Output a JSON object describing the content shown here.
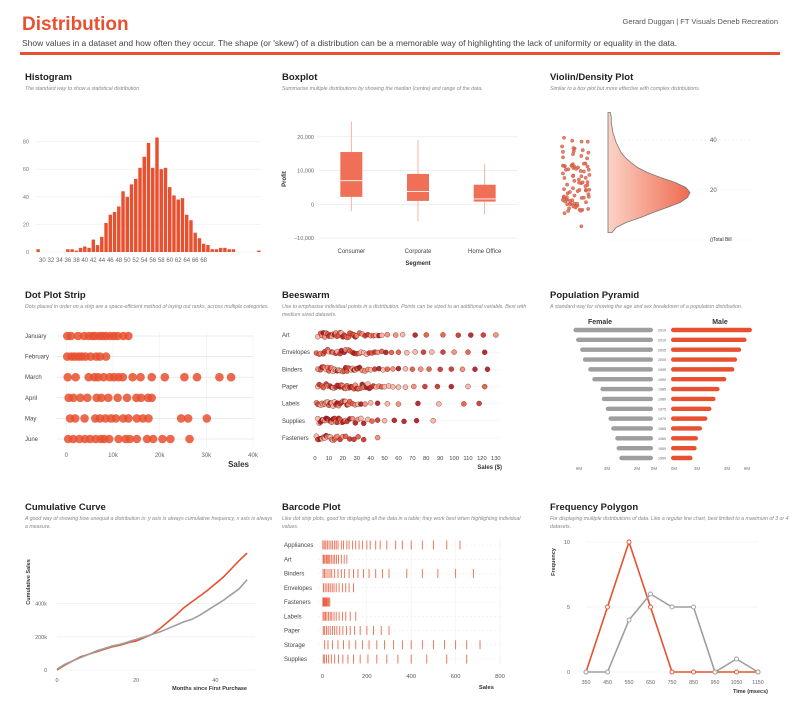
{
  "header": {
    "title": "Distribution",
    "subtitle": "Show values in a dataset and how often they occur. The shape (or 'skew') of a distribution can be a memorable way of highlighting the lack of uniformity or equality in the data.",
    "credit": "Gerard Duggan  |  FT Visuals Deneb Recreation"
  },
  "colors": {
    "accent": "#e8502f",
    "gray": "#9e9e9e",
    "light_orange": "#f7a38d",
    "dark_red": "#a8191f"
  },
  "panels": {
    "histogram": {
      "title": "Histogram",
      "subtitle": "The standard way to show a statistical distribution"
    },
    "boxplot": {
      "title": "Boxplot",
      "subtitle": "Summarise multiple distributions by showing the median (centre) and range of the data."
    },
    "violin": {
      "title": "Violin/Density Plot",
      "subtitle": "Similar to a box plot but more effective with complex distributions."
    },
    "dotstrip": {
      "title": "Dot Plot Strip",
      "subtitle": "Dots placed in order on a strip are a space-efficient method of laying out ranks, across multiple categories."
    },
    "beeswarm": {
      "title": "Beeswarm",
      "subtitle": "Use to emphasise individual points in a distribution. Points can be sized to an additional variable. Best with medium sized datasets."
    },
    "pyramid": {
      "title": "Population Pyramid",
      "subtitle": "A standard way for showing the age and sex breakdown of a population distribution."
    },
    "cumulative": {
      "title": "Cumulative Curve",
      "subtitle": "A good way of showing how unequal a distribution is: y axis is always cumulative frequency, x axis is always a measure."
    },
    "barcode": {
      "title": "Barcode Plot",
      "subtitle": "Like dot strip plots, good for displaying all the data in a table; they work best when highlighting individual values."
    },
    "freqpoly": {
      "title": "Frequency Polygon",
      "subtitle": "For displaying multiple distributions of data. Like a regular line chart, best limited to a maximum of 3 or 4 datasets."
    }
  },
  "chart_data": [
    {
      "id": "histogram",
      "type": "bar",
      "x_ticks": [
        "30",
        "32",
        "34",
        "36",
        "38",
        "40",
        "42",
        "44",
        "46",
        "48",
        "50",
        "52",
        "54",
        "56",
        "58",
        "60",
        "62",
        "64",
        "66",
        "68"
      ],
      "bins_start": 29,
      "bin_width": 1,
      "values": [
        2,
        0,
        0,
        0,
        0,
        0,
        0,
        2,
        2,
        1,
        3,
        4,
        3,
        9,
        5,
        11,
        21,
        27,
        29,
        33,
        44,
        40,
        49,
        53,
        61,
        69,
        79,
        61,
        83,
        60,
        61,
        47,
        41,
        38,
        39,
        27,
        23,
        14,
        10,
        6,
        5,
        2,
        2,
        3,
        3,
        2,
        2,
        0,
        0,
        0,
        0,
        0,
        1
      ],
      "ylim": [
        0,
        100
      ],
      "y_ticks": [
        "0",
        "20",
        "40",
        "60",
        "80"
      ]
    },
    {
      "id": "boxplot",
      "type": "box",
      "categories": [
        "Consumer",
        "Corporate",
        "Home Office"
      ],
      "boxes": [
        {
          "min": -2000,
          "q1": 2200,
          "median": 7000,
          "q3": 15500,
          "max": 24500
        },
        {
          "min": -5000,
          "q1": 1000,
          "median": 3800,
          "q3": 9000,
          "max": 19000
        },
        {
          "min": -3000,
          "q1": 800,
          "median": 1600,
          "q3": 5800,
          "max": 12000
        }
      ],
      "ylim": [
        -10000,
        25000
      ],
      "y_ticks": [
        "20,000",
        "10,000",
        "0",
        "−10,000"
      ],
      "y_tick_values": [
        20000,
        10000,
        0,
        -10000
      ],
      "xlabel": "Segment",
      "ylabel": "Profit"
    },
    {
      "id": "violin",
      "type": "area",
      "x_ticks": [
        "40",
        "20",
        "0"
      ],
      "x_tick_values": [
        40,
        20,
        0
      ],
      "density": [
        [
          3,
          0.05
        ],
        [
          5,
          0.1
        ],
        [
          7,
          0.22
        ],
        [
          9,
          0.4
        ],
        [
          11,
          0.55
        ],
        [
          13,
          0.72
        ],
        [
          15,
          0.88
        ],
        [
          17,
          0.97
        ],
        [
          19,
          1.0
        ],
        [
          21,
          0.95
        ],
        [
          23,
          0.82
        ],
        [
          25,
          0.64
        ],
        [
          27,
          0.48
        ],
        [
          29,
          0.36
        ],
        [
          31,
          0.28
        ],
        [
          33,
          0.21
        ],
        [
          35,
          0.16
        ],
        [
          37,
          0.13
        ],
        [
          39,
          0.1
        ],
        [
          41,
          0.08
        ],
        [
          43,
          0.06
        ],
        [
          45,
          0.05
        ],
        [
          47,
          0.04
        ],
        [
          49,
          0.04
        ],
        [
          51,
          0.03
        ]
      ],
      "ylim": [
        0,
        52
      ],
      "label": "Total Bill"
    },
    {
      "id": "dotstrip",
      "type": "scatter",
      "categories": [
        "January",
        "February",
        "March",
        "April",
        "May",
        "June"
      ],
      "points": [
        [
          200,
          1000,
          2500,
          3800,
          4800,
          5600,
          6200,
          7100,
          7800,
          8500,
          9400,
          10200,
          11000,
          12200,
          13300
        ],
        [
          200,
          1100,
          1800,
          2600,
          3300,
          4100,
          5200,
          6400,
          7200,
          8500
        ],
        [
          300,
          2000,
          4800,
          6000,
          6800,
          8000,
          9300,
          10200,
          11200,
          12100,
          14200,
          15900,
          18300,
          21100,
          25300,
          28000,
          32800,
          35300
        ],
        [
          500,
          1500,
          3000,
          4500,
          6500,
          7500,
          9000,
          11000,
          13000,
          15000,
          16000,
          17500,
          18300
        ],
        [
          800,
          1900,
          3900,
          6200,
          7200,
          8400,
          9600,
          10600,
          12200,
          13300,
          15100,
          16400,
          17600,
          24600,
          26100,
          30100
        ],
        [
          400,
          1500,
          2800,
          4000,
          5100,
          6300,
          7400,
          8100,
          9200,
          11200,
          12700,
          13600,
          15100,
          17300,
          18600,
          20600,
          22300,
          26400
        ]
      ],
      "x_ticks": [
        "0",
        "10k",
        "20k",
        "30k",
        "40k"
      ],
      "x_tick_values": [
        0,
        10000,
        20000,
        30000,
        40000
      ],
      "xlim": [
        -2000,
        40000
      ],
      "xlabel": "Sales"
    },
    {
      "id": "beeswarm",
      "type": "scatter",
      "categories": [
        "Art",
        "Envelopes",
        "Binders",
        "Paper",
        "Labels",
        "Supplies",
        "Fasteners"
      ],
      "points": [
        [
          2,
          4,
          5,
          6,
          7,
          8,
          8,
          9,
          10,
          11,
          12,
          12,
          13,
          14,
          15,
          15,
          16,
          17,
          18,
          19,
          20,
          21,
          22,
          23,
          24,
          25,
          26,
          27,
          28,
          29,
          30,
          32,
          34,
          36,
          38,
          40,
          42,
          44,
          46,
          48,
          52,
          58,
          63,
          72,
          80,
          92,
          103,
          112,
          121,
          130
        ],
        [
          1,
          3,
          4,
          6,
          7,
          9,
          10,
          12,
          13,
          15,
          16,
          18,
          19,
          21,
          22,
          24,
          25,
          27,
          28,
          30,
          32,
          33,
          35,
          37,
          39,
          41,
          43,
          45,
          48,
          51,
          55,
          60,
          66,
          72,
          78,
          84,
          92,
          100,
          110,
          122
        ],
        [
          2,
          3,
          4,
          5,
          6,
          7,
          8,
          9,
          10,
          11,
          12,
          13,
          14,
          15,
          16,
          17,
          18,
          19,
          20,
          21,
          22,
          23,
          24,
          25,
          26,
          27,
          28,
          29,
          30,
          31,
          32,
          34,
          36,
          38,
          40,
          43,
          46,
          49,
          52,
          56,
          60,
          65,
          70,
          76,
          82,
          90,
          98,
          106,
          115,
          124
        ],
        [
          2,
          3,
          5,
          6,
          8,
          9,
          10,
          11,
          12,
          13,
          14,
          15,
          16,
          17,
          18,
          19,
          20,
          21,
          22,
          23,
          24,
          25,
          26,
          27,
          28,
          29,
          30,
          31,
          32,
          33,
          34,
          35,
          36,
          37,
          38,
          39,
          40,
          42,
          44,
          46,
          48,
          50,
          53,
          56,
          60,
          65,
          71,
          79,
          88,
          98,
          110,
          122
        ],
        [
          1,
          2,
          3,
          4,
          5,
          6,
          7,
          8,
          9,
          10,
          11,
          12,
          13,
          14,
          15,
          16,
          17,
          18,
          19,
          20,
          21,
          22,
          23,
          24,
          25,
          27,
          29,
          31,
          33,
          36,
          40,
          45,
          52,
          60,
          74,
          89,
          107,
          118
        ],
        [
          2,
          3,
          4,
          5,
          6,
          7,
          8,
          9,
          10,
          11,
          12,
          13,
          14,
          15,
          16,
          17,
          18,
          19,
          20,
          21,
          22,
          23,
          25,
          27,
          29,
          31,
          33,
          35,
          38,
          41,
          45,
          50,
          57,
          64,
          73,
          85
        ],
        [
          1,
          2,
          3,
          4,
          5,
          6,
          7,
          8,
          9,
          10,
          11,
          12,
          13,
          14,
          15,
          16,
          18,
          20,
          22,
          25,
          28,
          31,
          35,
          45
        ]
      ],
      "x_ticks": [
        "0",
        "10",
        "20",
        "30",
        "40",
        "50",
        "60",
        "70",
        "80",
        "90",
        "100",
        "110",
        "120",
        "130"
      ],
      "xlim": [
        0,
        133
      ],
      "xlabel": "Sales ($)"
    },
    {
      "id": "pyramid",
      "type": "bar",
      "categories": [
        "2019",
        "2010",
        "2005",
        "2000",
        "1995",
        "1990",
        "1985",
        "1980",
        "1975",
        "1970",
        "1965",
        "1960",
        "1955",
        "1950"
      ],
      "series": [
        {
          "name": "Female",
          "values": [
            5.9,
            5.7,
            5.4,
            5.2,
            4.8,
            4.5,
            3.9,
            3.8,
            3.5,
            3.3,
            3.1,
            2.8,
            2.7,
            2.5
          ]
        },
        {
          "name": "Male",
          "values": [
            6.0,
            5.6,
            5.2,
            4.9,
            4.7,
            4.1,
            3.6,
            3.3,
            3.0,
            2.7,
            2.3,
            2.0,
            1.9,
            1.6
          ]
        }
      ],
      "x_ticks": [
        "6M",
        "4M",
        "2M",
        "0M",
        "0M",
        "2M",
        "4M",
        "6M"
      ]
    },
    {
      "id": "cumulative",
      "type": "line",
      "x": [
        0,
        2,
        4,
        6,
        8,
        10,
        12,
        14,
        16,
        18,
        20,
        22,
        24,
        26,
        28,
        30,
        32,
        34,
        36,
        38,
        40,
        42,
        44,
        46,
        48
      ],
      "series": [
        {
          "name": "",
          "values": [
            0,
            30,
            55,
            80,
            95,
            110,
            125,
            140,
            150,
            165,
            175,
            195,
            215,
            250,
            290,
            330,
            375,
            410,
            445,
            480,
            520,
            560,
            610,
            660,
            705
          ]
        },
        {
          "name": "",
          "values": [
            5,
            35,
            55,
            75,
            95,
            115,
            130,
            145,
            155,
            170,
            185,
            200,
            215,
            230,
            250,
            270,
            290,
            305,
            330,
            360,
            390,
            420,
            455,
            490,
            545
          ]
        }
      ],
      "xlim": [
        0,
        50
      ],
      "ylim": [
        0,
        760
      ],
      "x_ticks": [
        "0",
        "20",
        "40"
      ],
      "x_tick_values": [
        0,
        20,
        40
      ],
      "y_ticks": [
        "0",
        "200k",
        "400k"
      ],
      "y_tick_values": [
        0,
        200,
        400
      ],
      "xlabel": "Months since First Purchase",
      "ylabel": "Cumulative Sales"
    },
    {
      "id": "barcode",
      "type": "scatter",
      "categories": [
        "Appliances",
        "Art",
        "Binders",
        "Envelopes",
        "Fasteners",
        "Labels",
        "Paper",
        "Storage",
        "Supplies"
      ],
      "values": [
        [
          2,
          8,
          15,
          22,
          30,
          38,
          45,
          55,
          62,
          70,
          85,
          95,
          110,
          120,
          135,
          150,
          165,
          180,
          200,
          215,
          240,
          260,
          290,
          330,
          360,
          400,
          450,
          500,
          560,
          620
        ],
        [
          3,
          7,
          12,
          18,
          22,
          28,
          33,
          40,
          48,
          55,
          63,
          72,
          85,
          98,
          110
        ],
        [
          3,
          9,
          16,
          25,
          34,
          42,
          55,
          70,
          85,
          100,
          120,
          140,
          160,
          185,
          210,
          240,
          270,
          300,
          380,
          450,
          520,
          600,
          680
        ],
        [
          5,
          12,
          20,
          28,
          35,
          44,
          52,
          62,
          75,
          90,
          105,
          120,
          140
        ],
        [
          2,
          5,
          8,
          11,
          14,
          17,
          20,
          24,
          28,
          33
        ],
        [
          3,
          8,
          14,
          20,
          27,
          35,
          42,
          52,
          62,
          75,
          90,
          105,
          125,
          150
        ],
        [
          4,
          10,
          18,
          26,
          35,
          45,
          55,
          65,
          78,
          92,
          108,
          125,
          145,
          170,
          200,
          230,
          265,
          300
        ],
        [
          10,
          25,
          45,
          70,
          95,
          120,
          150,
          180,
          210,
          245,
          280,
          320,
          360,
          400,
          450,
          500,
          550,
          600,
          650,
          710
        ],
        [
          4,
          10,
          18,
          28,
          40,
          55,
          72,
          92,
          115,
          140,
          170,
          205,
          245,
          290,
          340,
          400,
          470,
          560,
          650
        ]
      ],
      "xlim": [
        -20,
        800
      ],
      "x_ticks": [
        "0",
        "200",
        "400",
        "600",
        "800"
      ],
      "x_tick_values": [
        0,
        200,
        400,
        600,
        800
      ],
      "xlabel": "Sales"
    },
    {
      "id": "freqpoly",
      "type": "line",
      "x": [
        350,
        450,
        550,
        650,
        750,
        850,
        950,
        1050,
        1150
      ],
      "series": [
        {
          "name": "",
          "values": [
            0,
            5,
            10,
            5,
            0,
            0,
            0,
            0,
            0
          ]
        },
        {
          "name": "",
          "values": [
            0,
            0,
            4,
            6,
            5,
            5,
            0,
            1,
            0
          ]
        }
      ],
      "ylim": [
        0,
        10
      ],
      "x_ticks": [
        "350",
        "450",
        "550",
        "650",
        "750",
        "850",
        "950",
        "1050",
        "1150"
      ],
      "y_ticks": [
        "0",
        "5",
        "10"
      ],
      "y_tick_values": [
        0,
        5,
        10
      ],
      "xlabel": "Time (msecs)",
      "ylabel": "Frequency"
    }
  ]
}
